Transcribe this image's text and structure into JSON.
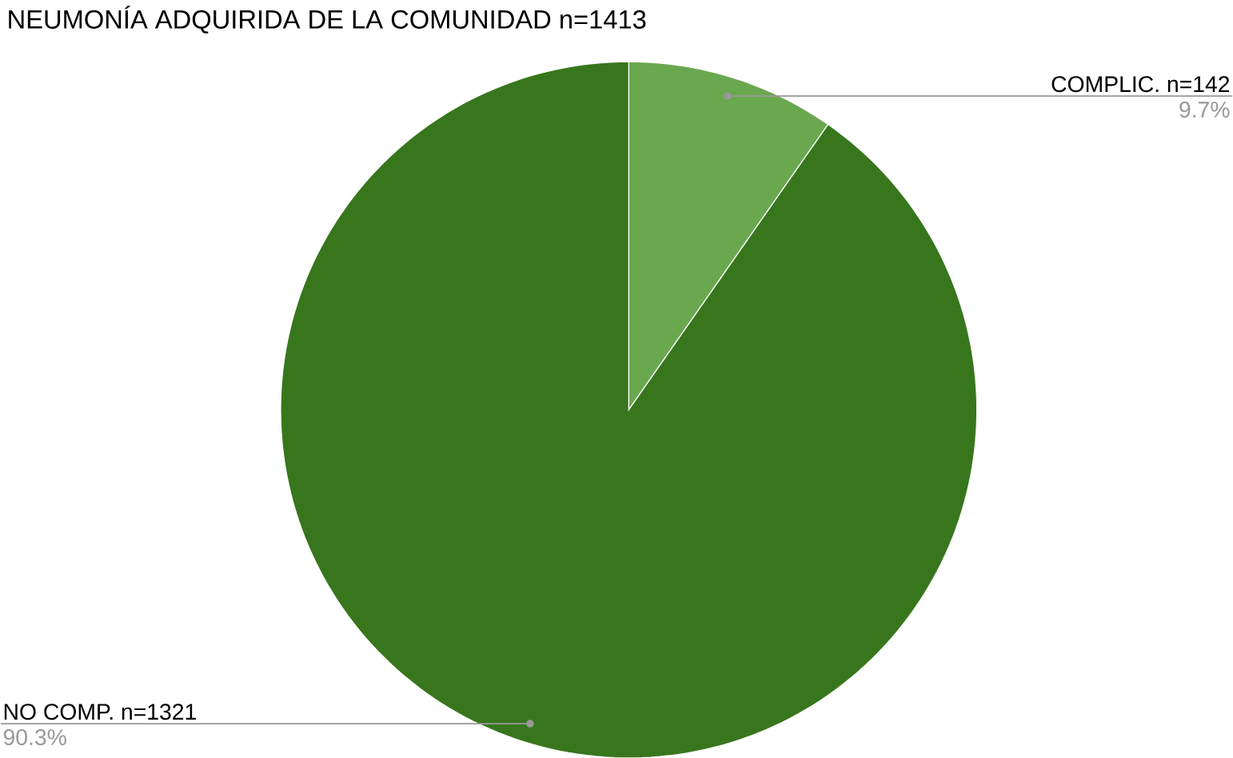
{
  "chart_data": {
    "type": "pie",
    "title": "NEUMONÍA ADQUIRIDA DE LA COMUNIDAD n=1413",
    "categories": [
      "COMPLIC. n=142",
      "NO COMP. n=1321"
    ],
    "values": [
      9.7,
      90.3
    ],
    "value_labels": [
      "9.7%",
      "90.3%"
    ],
    "colors": [
      "#6aa84f",
      "#38761d"
    ]
  }
}
